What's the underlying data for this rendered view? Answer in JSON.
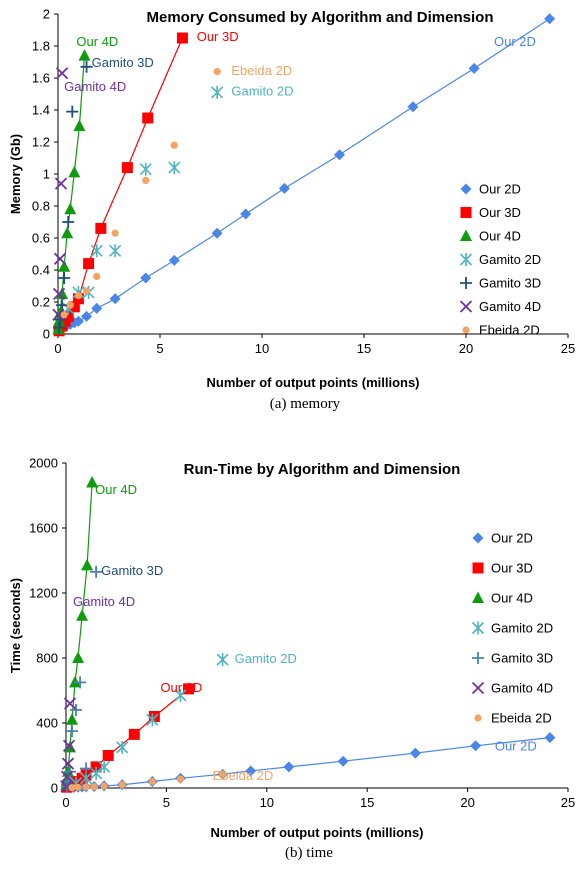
{
  "chart_data": [
    {
      "type": "scatter",
      "title": "Memory Consumed by Algorithm and Dimension",
      "caption": "(a)  memory",
      "xlabel": "Number of output points (millions)",
      "ylabel": "Memory (Gb)",
      "xlim": [
        0,
        25
      ],
      "ylim": [
        0,
        2
      ],
      "xticks": [
        0,
        5,
        10,
        15,
        20,
        25
      ],
      "yticks": [
        0,
        0.2,
        0.4,
        0.6,
        0.8,
        1,
        1.2,
        1.4,
        1.6,
        1.8,
        2
      ],
      "ytick_labels": [
        "0",
        "0.2",
        "0.4",
        "0.6",
        "0.8",
        "1",
        "1.2",
        "1.4",
        "1.6",
        "1.8",
        "2"
      ],
      "grid": false,
      "legend_position": "right",
      "series": [
        {
          "name": "Our 2D",
          "color": "#4A86E8",
          "marker": "diamond",
          "line": true,
          "x": [
            0.05,
            0.2,
            0.4,
            0.6,
            0.8,
            1.0,
            1.4,
            1.9,
            2.8,
            4.3,
            5.7,
            7.8,
            9.2,
            11.1,
            13.8,
            17.4,
            20.4,
            24.1
          ],
          "y": [
            0.02,
            0.04,
            0.05,
            0.06,
            0.07,
            0.08,
            0.11,
            0.16,
            0.22,
            0.35,
            0.46,
            0.63,
            0.75,
            0.91,
            1.12,
            1.42,
            1.66,
            1.97
          ]
        },
        {
          "name": "Our 3D",
          "color": "#FF0000",
          "marker": "square",
          "line": true,
          "x": [
            0.05,
            0.2,
            0.35,
            0.5,
            0.8,
            1.0,
            1.5,
            2.1,
            3.4,
            4.4,
            6.1
          ],
          "y": [
            0.02,
            0.05,
            0.08,
            0.11,
            0.17,
            0.22,
            0.44,
            0.66,
            1.04,
            1.35,
            1.85
          ]
        },
        {
          "name": "Our 4D",
          "color": "#0E9B0E",
          "marker": "triangle",
          "line": true,
          "x": [
            0.02,
            0.05,
            0.1,
            0.2,
            0.3,
            0.45,
            0.6,
            0.8,
            1.05,
            1.3
          ],
          "y": [
            0.03,
            0.08,
            0.13,
            0.25,
            0.42,
            0.63,
            0.78,
            1.01,
            1.3,
            1.74
          ]
        },
        {
          "name": "Gamito 2D",
          "color": "#4FB3C0",
          "marker": "asterisk",
          "line": false,
          "x": [
            0.5,
            1.0,
            1.5,
            1.9,
            2.8,
            4.3,
            5.7,
            7.8
          ],
          "y": [
            0.16,
            0.26,
            0.26,
            0.52,
            0.52,
            1.03,
            1.04,
            1.51
          ]
        },
        {
          "name": "Gamito 3D",
          "color": "#1F4E79",
          "marker": "plus",
          "line": false,
          "x": [
            0.05,
            0.12,
            0.2,
            0.3,
            0.5,
            0.7,
            1.4
          ],
          "y": [
            0.04,
            0.09,
            0.18,
            0.35,
            0.7,
            1.39,
            1.67
          ]
        },
        {
          "name": "Gamito 4D",
          "color": "#7030A0",
          "marker": "x",
          "line": false,
          "x": [
            0.02,
            0.05,
            0.1,
            0.15,
            0.2
          ],
          "y": [
            0.12,
            0.25,
            0.47,
            0.94,
            1.63
          ]
        },
        {
          "name": "Ebeida 2D",
          "color": "#F4A460",
          "marker": "circle",
          "line": false,
          "x": [
            0.3,
            0.6,
            1.0,
            1.4,
            1.9,
            2.8,
            4.3,
            5.7,
            7.8
          ],
          "y": [
            0.12,
            0.18,
            0.24,
            0.27,
            0.36,
            0.63,
            0.96,
            1.18,
            1.64
          ]
        }
      ],
      "annotations": [
        {
          "text": "Our 4D",
          "color": "#0E9B0E",
          "x": 0.9,
          "y": 1.8
        },
        {
          "text": "Gamito 3D",
          "color": "#1F4E79",
          "x": 1.65,
          "y": 1.67
        },
        {
          "text": "Gamito 4D",
          "color": "#7030A0",
          "x": 0.3,
          "y": 1.52
        },
        {
          "text": "Our 3D",
          "color": "#FF0000",
          "x": 6.8,
          "y": 1.83
        },
        {
          "text": "Ebeida 2D",
          "color": "#F4A460",
          "x": 8.5,
          "y": 1.62
        },
        {
          "text": "Gamito 2D",
          "color": "#4FB3C0",
          "x": 8.5,
          "y": 1.49
        },
        {
          "text": "Our 2D",
          "color": "#4A86E8",
          "x": 22.4,
          "y": 1.8
        }
      ]
    },
    {
      "type": "scatter",
      "title": "Run-Time by Algorithm and Dimension",
      "caption": "(b)  time",
      "xlabel": "Number of output points (millions)",
      "ylabel": "Time (seconds)",
      "xlim": [
        0,
        25
      ],
      "ylim": [
        0,
        2000
      ],
      "xticks": [
        0,
        5,
        10,
        15,
        20,
        25
      ],
      "yticks": [
        0,
        400,
        800,
        1200,
        1600,
        2000
      ],
      "ytick_labels": [
        "0",
        "400",
        "800",
        "1200",
        "1600",
        "2000"
      ],
      "grid": false,
      "legend_position": "right",
      "series": [
        {
          "name": "Our 2D",
          "color": "#4A86E8",
          "marker": "diamond",
          "line": true,
          "x": [
            0.05,
            0.2,
            0.4,
            0.6,
            0.8,
            1.0,
            1.4,
            1.9,
            2.8,
            4.3,
            5.7,
            7.8,
            9.2,
            11.1,
            13.8,
            17.4,
            20.4,
            24.1
          ],
          "y": [
            2,
            3,
            4,
            5,
            6,
            7,
            9,
            13,
            20,
            40,
            60,
            85,
            105,
            130,
            165,
            215,
            260,
            310
          ]
        },
        {
          "name": "Our 3D",
          "color": "#FF0000",
          "marker": "square",
          "line": true,
          "x": [
            0.05,
            0.2,
            0.35,
            0.5,
            0.8,
            1.0,
            1.5,
            2.1,
            3.4,
            4.4,
            6.1
          ],
          "y": [
            5,
            15,
            25,
            40,
            60,
            80,
            130,
            200,
            330,
            440,
            610
          ]
        },
        {
          "name": "Our 4D",
          "color": "#0E9B0E",
          "marker": "triangle",
          "line": true,
          "x": [
            0.02,
            0.05,
            0.1,
            0.2,
            0.3,
            0.45,
            0.6,
            0.8,
            1.05,
            1.3
          ],
          "y": [
            20,
            50,
            100,
            250,
            420,
            650,
            800,
            1060,
            1370,
            1880
          ]
        },
        {
          "name": "Gamito 2D",
          "color": "#4FB3C0",
          "marker": "asterisk",
          "line": false,
          "x": [
            0.5,
            1.0,
            1.5,
            1.9,
            2.8,
            4.3,
            5.7,
            7.8
          ],
          "y": [
            30,
            60,
            90,
            130,
            250,
            420,
            570,
            790
          ]
        },
        {
          "name": "Gamito 3D",
          "color": "#4A7FB5",
          "marker": "plus",
          "line": false,
          "x": [
            0.05,
            0.12,
            0.2,
            0.3,
            0.5,
            0.7,
            1.0,
            1.5
          ],
          "y": [
            10,
            40,
            100,
            350,
            480,
            650,
            120,
            1330
          ]
        },
        {
          "name": "Gamito 4D",
          "color": "#7030A0",
          "marker": "x",
          "line": false,
          "x": [
            0.02,
            0.05,
            0.1,
            0.15,
            0.2
          ],
          "y": [
            10,
            70,
            150,
            260,
            520
          ]
        },
        {
          "name": "Ebeida 2D",
          "color": "#F4A460",
          "marker": "circle",
          "line": false,
          "x": [
            0.3,
            0.6,
            1.0,
            1.4,
            1.9,
            2.8,
            4.3,
            5.7,
            7.8
          ],
          "y": [
            2,
            4,
            6,
            8,
            12,
            20,
            40,
            55,
            85
          ]
        }
      ],
      "annotations": [
        {
          "text": "Our 4D",
          "color": "#0E9B0E",
          "x": 1.45,
          "y": 1810
        },
        {
          "text": "Gamito 3D",
          "color": "#1F4E79",
          "x": 1.75,
          "y": 1310
        },
        {
          "text": "Gamito 4D",
          "color": "#7030A0",
          "x": 0.35,
          "y": 1120
        },
        {
          "text": "Gamito 2D",
          "color": "#4FB3C0",
          "x": 8.4,
          "y": 770
        },
        {
          "text": "Our 3D",
          "color": "#FF0000",
          "x": 4.7,
          "y": 590
        },
        {
          "text": "Ebeida 2D",
          "color": "#F4A460",
          "x": 7.3,
          "y": 50
        },
        {
          "text": "Our 2D",
          "color": "#4A86E8",
          "x": 22.4,
          "y": 230
        }
      ]
    }
  ]
}
